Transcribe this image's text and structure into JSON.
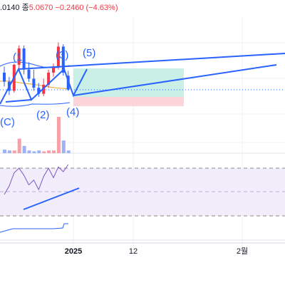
{
  "header": {
    "open_partial": ".0140",
    "close_label": "종",
    "close_value": "5.0670",
    "change": "−0.2460 (−4.63%)"
  },
  "colors": {
    "up": "#f23645",
    "down": "#2962ff",
    "trend": "#2962ff",
    "bb_line": "#2962ff",
    "ma_line": "#f5a623",
    "profit_zone": "#c9efe6",
    "loss_zone": "#fbd5d8",
    "rsi_bg": "#f1edfb",
    "rsi_line": "#7e57c2",
    "hist_bg": "#f0f3fa"
  },
  "waves": [
    "(1)",
    "(2)",
    "(3)",
    "(4)",
    "(5)",
    "(C)"
  ],
  "time_axis": [
    "2025",
    "12",
    "2월"
  ],
  "chart_data": {
    "type": "candlestick",
    "candles": [
      {
        "o": 5.35,
        "h": 5.45,
        "c": 5.2,
        "l": 5.12
      },
      {
        "o": 5.2,
        "h": 5.28,
        "c": 5.05,
        "l": 4.98
      },
      {
        "o": 5.05,
        "h": 5.5,
        "c": 5.48,
        "l": 5.02
      },
      {
        "o": 5.48,
        "h": 5.8,
        "c": 5.75,
        "l": 5.4
      },
      {
        "o": 5.75,
        "h": 5.8,
        "c": 5.4,
        "l": 5.32
      },
      {
        "o": 5.4,
        "h": 5.52,
        "c": 5.25,
        "l": 5.2
      },
      {
        "o": 5.25,
        "h": 5.4,
        "c": 5.1,
        "l": 5.05
      },
      {
        "o": 5.1,
        "h": 5.18,
        "c": 5.0,
        "l": 4.95
      },
      {
        "o": 5.0,
        "h": 5.25,
        "c": 5.15,
        "l": 4.96
      },
      {
        "o": 5.15,
        "h": 5.4,
        "c": 5.35,
        "l": 5.1
      },
      {
        "o": 5.35,
        "h": 5.5,
        "c": 5.45,
        "l": 5.28
      },
      {
        "o": 5.45,
        "h": 5.85,
        "c": 5.78,
        "l": 5.4
      },
      {
        "o": 5.78,
        "h": 5.82,
        "c": 5.35,
        "l": 5.3
      },
      {
        "o": 5.3,
        "h": 5.38,
        "c": 5.07,
        "l": 5.05
      }
    ],
    "volumes": [
      4,
      3,
      3,
      16,
      8,
      3,
      2,
      3,
      2,
      3,
      3,
      40,
      14,
      3
    ],
    "rsi": [
      48,
      55,
      66,
      70,
      64,
      56,
      60,
      52,
      63,
      70,
      62,
      71,
      67,
      73
    ],
    "last_price": 5.067
  }
}
